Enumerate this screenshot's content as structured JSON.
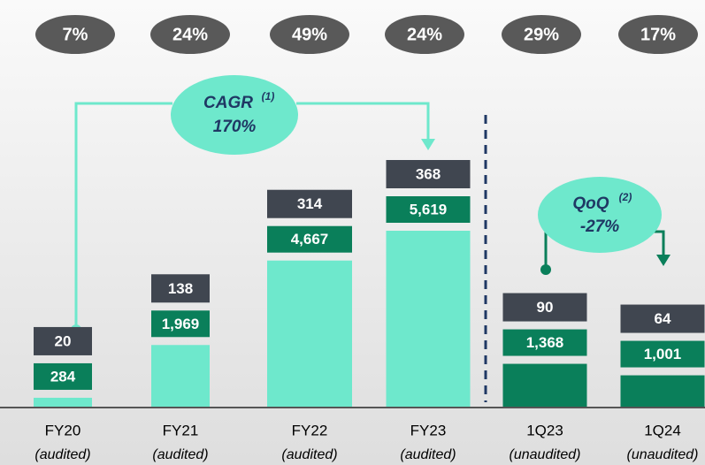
{
  "chart_data": {
    "type": "bar",
    "categories": [
      "FY20",
      "FY21",
      "FY22",
      "FY23",
      "1Q23",
      "1Q24"
    ],
    "subtitles": [
      "(audited)",
      "(audited)",
      "(audited)",
      "(audited)",
      "(unaudited)",
      "(unaudited)"
    ],
    "values": [
      284,
      1969,
      4667,
      5619,
      1368,
      1001
    ],
    "value_labels": [
      "284",
      "1,969",
      "4,667",
      "5,619",
      "1,368",
      "1,001"
    ],
    "colors": [
      "#6ee8cc",
      "#6ee8cc",
      "#6ee8cc",
      "#6ee8cc",
      "#0a7f5a",
      "#0a7f5a"
    ],
    "top_values": [
      20,
      138,
      314,
      368,
      90,
      64
    ],
    "growth": {
      "values": [
        7,
        24,
        49,
        24,
        29,
        17
      ],
      "value_labels": [
        "7%",
        "24%",
        "49%",
        "24%",
        "29%",
        "17%"
      ]
    },
    "annotations": [
      {
        "label": "CAGR",
        "sup": "(1)",
        "value": "170%"
      },
      {
        "label": "QoQ",
        "sup": "(2)",
        "value": "-27%"
      }
    ]
  }
}
